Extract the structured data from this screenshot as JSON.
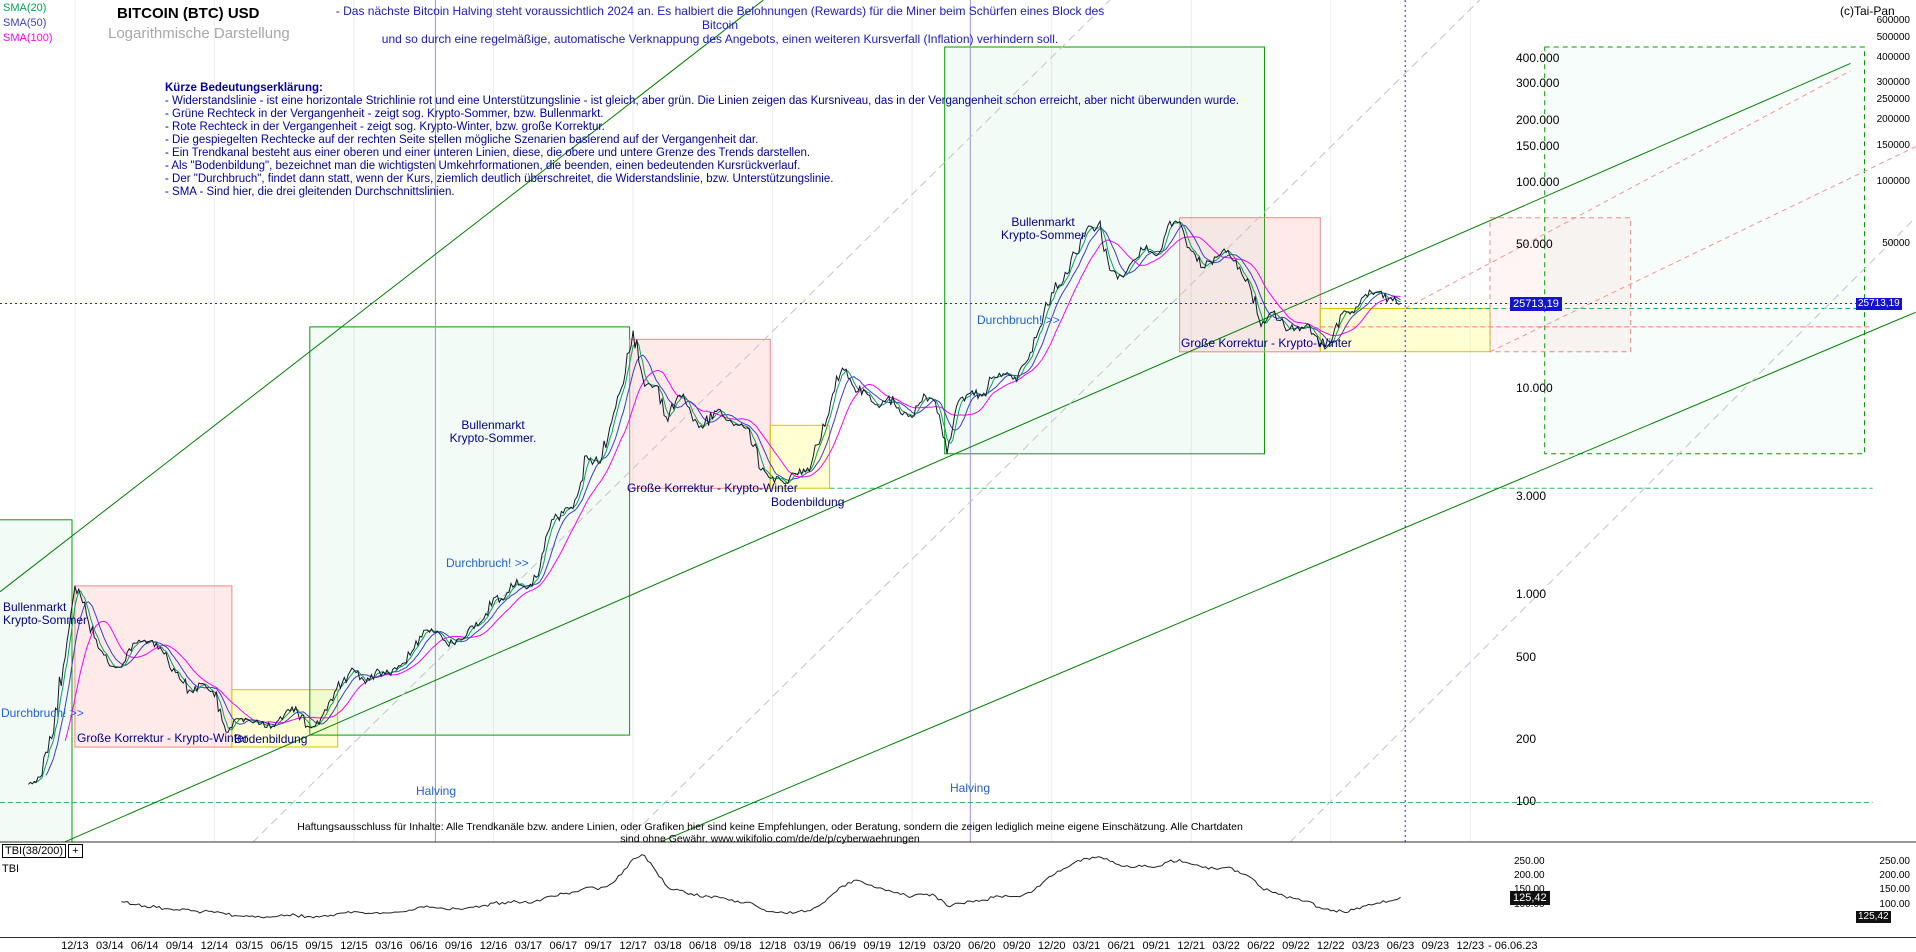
{
  "window": {
    "copyright": "(c)Tai-Pan"
  },
  "header": {
    "title": "BITCOIN (BTC) USD",
    "subtitle": "Logarithmische Darstellung",
    "legend": [
      {
        "label": "SMA(20)",
        "color": "#00a651"
      },
      {
        "label": "SMA(50)",
        "color": "#3c3cd2"
      },
      {
        "label": "SMA(100)",
        "color": "#ff00ff"
      }
    ],
    "note_line1": "- Das nächste Bitcoin Halving steht voraussichtlich 2024 an. Es halbiert die Belohnungen (Rewards) für die Miner beim Schürfen eines Block des Bitcoin",
    "note_line2": "und so durch eine regelmäßige, automatische Verknappung des Angebots, einen weiteren Kursverfall (Inflation) verhindern soll."
  },
  "explanation": {
    "heading": "Kürze Bedeutungserklärung:",
    "lines": [
      "- Widerstandslinie - ist eine horizontale Strichlinie rot und eine Unterstützungslinie - ist gleich, aber grün. Die Linien zeigen das Kursniveau, das in der Vergangenheit schon erreicht, aber nicht überwunden wurde.",
      "- Grüne Rechteck in der Vergangenheit - zeigt sog. Krypto-Sommer, bzw. Bullenmarkt.",
      "- Rote Rechteck in der Vergangenheit - zeigt sog. Krypto-Winter, bzw. große Korrektur.",
      "- Die gespiegelten Rechtecke auf der rechten Seite stellen mögliche Szenarien basierend auf der Vergangenheit dar.",
      "- Ein Trendkanal besteht aus einer oberen und einer unteren Linien, diese, die obere und untere Grenze des Trends darstellen.",
      "- Als \"Bodenbildung\", bezeichnet man die wichtigsten Umkehrformationen, die beenden, einen bedeutenden Kursrückverlauf.",
      "- Der \"Durchbruch\", findet dann statt, wenn der Kurs, ziemlich deutlich überschreitet, die Widerstandslinie, bzw. Unterstützungslinie.",
      "- SMA - Sind hier, die drei gleitenden Durchschnittslinien."
    ]
  },
  "disclaimer": "Haftungsausschluss für Inhalte: Alle Trendkanäle bzw. andere Linien, oder Grafiken hier sind keine Empfehlungen, oder Beratung, sondern die zeigen lediglich meine eigene Einschätzung. Alle Chartdaten sind ohne Gewähr.  www.wikifolio.com/de/de/p/cyberwaehrungen",
  "colors": {
    "price_line": "#15152e",
    "sma20": "#00a651",
    "sma50": "#3c3cd2",
    "sma100": "#ff00ff",
    "current_price": "#2222ee",
    "support": "#2fb860",
    "resistance": "#ff7070",
    "channel": "#008000",
    "mirror": "#c4c4cc",
    "scenario": "#ff9090",
    "halving_line": "#9a90e8",
    "year_grid": "#ececf4",
    "bull_fill": "rgba(0,176,80,0.05)",
    "bull_fill_m": "rgba(0,176,80,0.03)",
    "bull_stroke": "#00a000",
    "corr_fill": "rgba(255,160,160,0.22)",
    "corr_fill_m": "rgba(255,160,160,0.10)",
    "corr_stroke": "#ee8888",
    "bottom_fill": "rgba(255,255,130,0.35)",
    "bottom_stroke": "#d6c500",
    "tbi_line": "#222222"
  },
  "chart_data": {
    "type": "line",
    "title": "BITCOIN (BTC) USD",
    "y_scale": "log",
    "ylim": [
      63,
      760000
    ],
    "series_start_month": "2013-08",
    "today_index": 118.4,
    "current_price": 25713.19,
    "current_price_label": "25713,19",
    "x_tick_labels": [
      "12/13",
      "03/14",
      "06/14",
      "09/14",
      "12/14",
      "03/15",
      "06/15",
      "09/15",
      "12/15",
      "03/16",
      "06/16",
      "09/16",
      "12/16",
      "03/17",
      "06/17",
      "09/17",
      "12/17",
      "03/18",
      "06/18",
      "09/18",
      "12/18",
      "03/19",
      "06/19",
      "09/19",
      "12/19",
      "03/20",
      "06/20",
      "09/20",
      "12/20",
      "03/21",
      "06/21",
      "09/21",
      "12/21",
      "03/22",
      "06/22",
      "09/22",
      "12/22",
      "03/23",
      "06/23",
      "09/23",
      "12/23"
    ],
    "end_date_label": "-  06.06.23",
    "y_axis_labels": [
      {
        "text": "400.000",
        "value": 400000
      },
      {
        "text": "300.000",
        "value": 300000
      },
      {
        "text": "200.000",
        "value": 200000
      },
      {
        "text": "150.000",
        "value": 150000
      },
      {
        "text": "100.000",
        "value": 100000
      },
      {
        "text": "50.000",
        "value": 50000
      },
      {
        "text": "10.000",
        "value": 10000
      },
      {
        "text": "3.000",
        "value": 3000
      },
      {
        "text": "1.000",
        "value": 1000
      },
      {
        "text": "500",
        "value": 500
      },
      {
        "text": "200",
        "value": 200
      },
      {
        "text": "100",
        "value": 100
      }
    ],
    "y_axis_far_labels": [
      {
        "text": "600000",
        "value": 600000
      },
      {
        "text": "500000",
        "value": 500000
      },
      {
        "text": "400000",
        "value": 400000
      },
      {
        "text": "300000",
        "value": 300000
      },
      {
        "text": "250000",
        "value": 250000
      },
      {
        "text": "200000",
        "value": 200000
      },
      {
        "text": "150000",
        "value": 150000
      },
      {
        "text": "100000",
        "value": 100000
      },
      {
        "text": "50000",
        "value": 50000
      }
    ],
    "halvings": [
      {
        "label": "Halving",
        "month_index": 35
      },
      {
        "label": "Halving",
        "month_index": 81
      }
    ],
    "price_series": {
      "name": "BTC/USD",
      "values": [
        120,
        130,
        200,
        450,
        1100,
        800,
        550,
        450,
        445,
        580,
        600,
        580,
        480,
        390,
        340,
        370,
        320,
        215,
        250,
        245,
        235,
        230,
        260,
        285,
        230,
        235,
        310,
        375,
        430,
        370,
        435,
        415,
        450,
        530,
        670,
        655,
        575,
        610,
        700,
        745,
        960,
        970,
        1180,
        1080,
        1350,
        2300,
        2480,
        2870,
        4700,
        4340,
        6450,
        10000,
        19000,
        10200,
        10300,
        6900,
        9250,
        7500,
        6400,
        7750,
        7000,
        6600,
        6300,
        4000,
        3700,
        3450,
        3850,
        4100,
        5350,
        8550,
        12500,
        10100,
        9600,
        8300,
        9150,
        7550,
        7200,
        9350,
        8550,
        4800,
        8650,
        9450,
        9140,
        11350,
        11650,
        10780,
        13800,
        19700,
        29000,
        33100,
        45100,
        58800,
        62000,
        37300,
        35000,
        41600,
        47100,
        43800,
        61300,
        64000,
        46200,
        38500,
        43200,
        45500,
        37700,
        31800,
        19900,
        23300,
        20050,
        19400,
        20500,
        16000,
        16550,
        23100,
        23150,
        28500,
        29250,
        27200,
        25713
      ]
    },
    "sma_series": [
      {
        "name": "SMA(20)"
      },
      {
        "name": "SMA(50)"
      },
      {
        "name": "SMA(100)"
      }
    ],
    "rectangles": [
      {
        "kind": "bull",
        "i1": -3.5,
        "i2": 3.75,
        "v_top": 2300,
        "v_bottom": 56
      },
      {
        "kind": "corr",
        "i1": 4.0,
        "i2": 17.5,
        "v_top": 1100,
        "v_bottom": 182
      },
      {
        "kind": "bottom",
        "i1": 17.5,
        "i2": 26.6,
        "v_top": 345,
        "v_bottom": 182
      },
      {
        "kind": "bull",
        "i1": 24.2,
        "i2": 51.7,
        "v_top": 19800,
        "v_bottom": 208
      },
      {
        "kind": "corr",
        "i1": 51.7,
        "i2": 63.8,
        "v_top": 17250,
        "v_bottom": 3270
      },
      {
        "kind": "bottom",
        "i1": 63.8,
        "i2": 68.9,
        "v_top": 6600,
        "v_bottom": 3270
      },
      {
        "kind": "bull",
        "i1": 78.8,
        "i2": 106.3,
        "v_top": 450000,
        "v_bottom": 4800
      },
      {
        "kind": "corr",
        "i1": 99.0,
        "i2": 111.1,
        "v_top": 67000,
        "v_bottom": 15000
      },
      {
        "kind": "bottom",
        "i1": 111.1,
        "i2": 125.7,
        "v_top": 24300,
        "v_bottom": 15000
      },
      {
        "kind": "corr",
        "mirrored": true,
        "i1": 125.7,
        "i2": 137.8,
        "v_top": 67000,
        "v_bottom": 15000
      },
      {
        "kind": "bull",
        "mirrored": true,
        "i1": 130.4,
        "i2": 157.9,
        "v_top": 450000,
        "v_bottom": 4800
      }
    ],
    "trendlines": [
      {
        "style": "channel",
        "i1": 3.1,
        "v1": 63,
        "i2": 156.7,
        "v2": 375000
      },
      {
        "style": "channel",
        "i1": -2.44,
        "v1": 1030,
        "i2": 63.2,
        "v2": 760000
      },
      {
        "style": "channel",
        "i1": 54.3,
        "v1": 63,
        "i2": 162.3,
        "v2": 23300
      },
      {
        "style": "mirror",
        "i1": 19.3,
        "v1": 63,
        "i2": 93.0,
        "v2": 760000
      },
      {
        "style": "mirror",
        "i1": 51.3,
        "v1": 63,
        "i2": 124.8,
        "v2": 760000
      },
      {
        "style": "mirror",
        "i1": 108.5,
        "v1": 63,
        "i2": 162.3,
        "v2": 67000
      },
      {
        "style": "scenario",
        "i1": 118.4,
        "v1": 24300,
        "i2": 156.7,
        "v2": 345000
      },
      {
        "style": "scenario",
        "i1": 125.7,
        "v1": 15000,
        "i2": 162.3,
        "v2": 148000
      }
    ],
    "support_resistance": [
      {
        "type": "support",
        "value": 24300,
        "i1": 118.4,
        "i2": 158.6
      },
      {
        "type": "support",
        "value": 3270,
        "i1": 68.9,
        "i2": 158.6
      },
      {
        "type": "support",
        "value": 98,
        "i1": -2.44,
        "i2": 158.6
      },
      {
        "type": "resistance",
        "value": 19800,
        "i1": 111.1,
        "i2": 158.6
      }
    ],
    "annotations": [
      {
        "text": "Bullenmarkt\nKrypto-Sommer",
        "x": 3,
        "y": 601,
        "color": "navy"
      },
      {
        "text": "Durchbruch! >>",
        "x": 1,
        "y": 707,
        "color": "blue"
      },
      {
        "text": "Große Korrektur - Krypto-Winter",
        "x": 77,
        "y": 732,
        "color": "navy"
      },
      {
        "text": "Bodenbildung",
        "x": 234,
        "y": 733,
        "color": "navy"
      },
      {
        "text": "Bullenmarkt\nKrypto-Sommer.",
        "x": 443,
        "y": 419,
        "color": "navy",
        "w": 100
      },
      {
        "text": "Durchbruch! >>",
        "x": 446,
        "y": 557,
        "color": "blue"
      },
      {
        "text": "Große Korrektur - Krypto-Winter",
        "x": 627,
        "y": 482,
        "color": "navy"
      },
      {
        "text": "Bodenbildung",
        "x": 771,
        "y": 496,
        "color": "navy"
      },
      {
        "text": "Halving",
        "x": 416,
        "y": 785,
        "color": "blue"
      },
      {
        "text": "Halving",
        "x": 950,
        "y": 782,
        "color": "blue"
      },
      {
        "text": "Bullenmarkt\nKrypto-Sommer",
        "x": 993,
        "y": 216,
        "color": "navy",
        "w": 100
      },
      {
        "text": "Durchbruch! >>",
        "x": 977,
        "y": 314,
        "color": "blue"
      },
      {
        "text": "Große Korrektur - Krypto-Winter",
        "x": 1181,
        "y": 337,
        "color": "navy"
      }
    ],
    "tbi": {
      "label": "TBI(38/200)",
      "expander": "+",
      "sub_label": "TBI",
      "current": 125.42,
      "current_label": "125,42",
      "axis_labels": [
        {
          "text": "250.00",
          "value": 250
        },
        {
          "text": "200.00",
          "value": 200
        },
        {
          "text": "150.00",
          "value": 150
        },
        {
          "text": "100.00",
          "value": 100
        }
      ],
      "values": [
        null,
        null,
        null,
        null,
        null,
        null,
        null,
        null,
        110,
        100,
        95,
        90,
        85,
        80,
        78,
        75,
        72,
        65,
        60,
        58,
        55,
        57,
        60,
        62,
        58,
        56,
        62,
        70,
        75,
        68,
        72,
        70,
        74,
        80,
        90,
        88,
        82,
        85,
        90,
        95,
        105,
        102,
        110,
        105,
        112,
        130,
        138,
        145,
        160,
        152,
        170,
        205,
        260,
        272,
        215,
        160,
        150,
        138,
        125,
        130,
        120,
        112,
        108,
        85,
        75,
        70,
        72,
        78,
        95,
        130,
        165,
        185,
        172,
        158,
        150,
        135,
        128,
        135,
        130,
        95,
        105,
        112,
        115,
        125,
        132,
        128,
        142,
        165,
        200,
        225,
        248,
        262,
        268,
        252,
        235,
        230,
        238,
        232,
        250,
        258,
        242,
        230,
        226,
        230,
        218,
        198,
        160,
        142,
        130,
        120,
        112,
        90,
        78,
        75,
        82,
        95,
        105,
        112,
        125.42
      ]
    }
  }
}
